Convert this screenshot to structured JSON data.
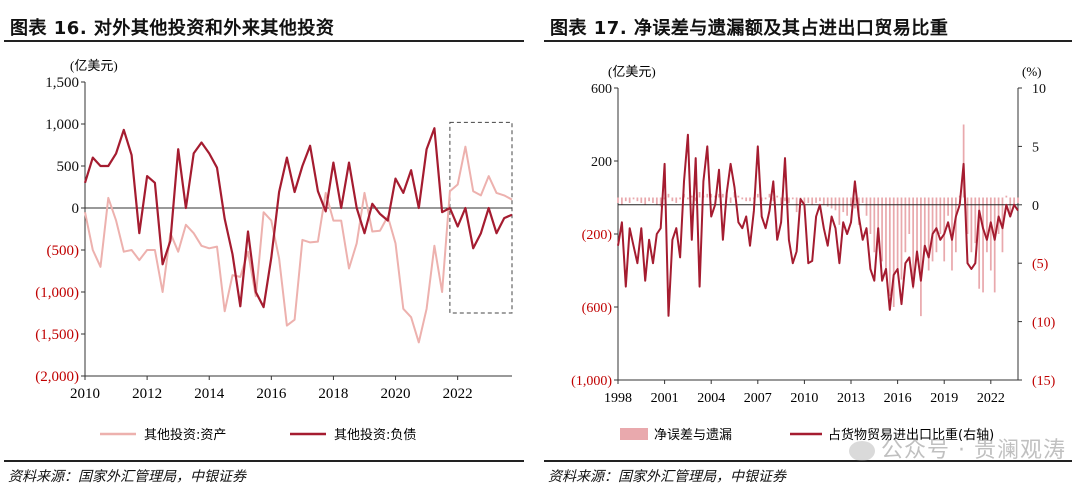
{
  "figures": {
    "left": {
      "title": "图表 16. 对外其他投资和外来其他投资",
      "source": "资料来源：国家外汇管理局，中银证券"
    },
    "right": {
      "title": "图表 17. 净误差与遗漏额及其占进出口贸易比重",
      "source": "资料来源：国家外汇管理局，中银证券"
    }
  },
  "watermark": "公众号 · 贵澜观涛",
  "colors": {
    "dark_red": "#A51C30",
    "light_pink": "#EDB1AE",
    "bar_pink": "#E9A9AD",
    "red_ticks": "#C00000"
  },
  "chart_data": [
    {
      "type": "line",
      "ylabel": "(亿美元)",
      "ylim": [
        -2000,
        1500
      ],
      "yticks": [
        1500,
        1000,
        500,
        0,
        -500,
        -1000,
        -1500,
        -2000
      ],
      "ytick_labels": [
        "1,500",
        "1,000",
        "500",
        "0",
        "(500)",
        "(1,000)",
        "(1,500)",
        "(2,000)"
      ],
      "xlim": [
        2010,
        2023.75
      ],
      "xticks": [
        2010,
        2012,
        2014,
        2016,
        2018,
        2020,
        2022
      ],
      "xtick_labels": [
        "2010",
        "2012",
        "2014",
        "2016",
        "2018",
        "2020",
        "2022"
      ],
      "highlight_box": {
        "x_from": 2021.75,
        "x_to": 2023.75,
        "y_from": -1250,
        "y_to": 1020
      },
      "x": [
        2010.0,
        2010.25,
        2010.5,
        2010.75,
        2011.0,
        2011.25,
        2011.5,
        2011.75,
        2012.0,
        2012.25,
        2012.5,
        2012.75,
        2013.0,
        2013.25,
        2013.5,
        2013.75,
        2014.0,
        2014.25,
        2014.5,
        2014.75,
        2015.0,
        2015.25,
        2015.5,
        2015.75,
        2016.0,
        2016.25,
        2016.5,
        2016.75,
        2017.0,
        2017.25,
        2017.5,
        2017.75,
        2018.0,
        2018.25,
        2018.5,
        2018.75,
        2019.0,
        2019.25,
        2019.5,
        2019.75,
        2020.0,
        2020.25,
        2020.5,
        2020.75,
        2021.0,
        2021.25,
        2021.5,
        2021.75,
        2022.0,
        2022.25,
        2022.5,
        2022.75,
        2023.0,
        2023.25,
        2023.5,
        2023.75
      ],
      "series": [
        {
          "name": "其他投资:资产",
          "color": "#EDB1AE",
          "values": [
            -50,
            -500,
            -700,
            120,
            -150,
            -520,
            -500,
            -620,
            -500,
            -500,
            -1000,
            -300,
            -520,
            -200,
            -300,
            -450,
            -480,
            -460,
            -1230,
            -800,
            -820,
            -520,
            -1050,
            -50,
            -150,
            -600,
            -1400,
            -1330,
            -380,
            -410,
            -400,
            180,
            -150,
            -150,
            -720,
            -420,
            180,
            -280,
            -270,
            -100,
            -420,
            -1200,
            -1300,
            -1600,
            -1200,
            -450,
            -1000,
            200,
            280,
            730,
            200,
            150,
            380,
            180,
            150,
            100
          ]
        },
        {
          "name": "其他投资:负债",
          "color": "#A51C30",
          "values": [
            300,
            600,
            500,
            500,
            650,
            930,
            630,
            -300,
            380,
            300,
            -670,
            -390,
            700,
            0,
            650,
            780,
            650,
            480,
            -130,
            -550,
            -1170,
            -280,
            -1000,
            -1180,
            -590,
            190,
            600,
            190,
            500,
            740,
            200,
            -40,
            540,
            0,
            540,
            0,
            -300,
            50,
            -70,
            -150,
            350,
            180,
            450,
            0,
            700,
            950,
            -50,
            0,
            -220,
            0,
            -480,
            -300,
            0,
            -300,
            -120,
            -80
          ]
        }
      ]
    },
    {
      "type": "bar+line",
      "ylabel": "(亿美元)",
      "y2label": "(%)",
      "ylim": [
        -1000,
        600
      ],
      "yticks": [
        600,
        200,
        -200,
        -600,
        -1000
      ],
      "ytick_labels": [
        "600",
        "200",
        "(200)",
        "(600)",
        "(1,000)"
      ],
      "y2lim": [
        -15,
        10
      ],
      "y2ticks": [
        10,
        5,
        0,
        -5,
        -10,
        -15
      ],
      "y2tick_labels": [
        "10",
        "5",
        "0",
        "(5)",
        "(10)",
        "(15)"
      ],
      "xlim": [
        1998,
        2023.75
      ],
      "xticks": [
        1998,
        2001,
        2004,
        2007,
        2010,
        2013,
        2016,
        2019,
        2022
      ],
      "xtick_labels": [
        "1998",
        "2001",
        "2004",
        "2007",
        "2010",
        "2013",
        "2016",
        "2019",
        "2022"
      ],
      "x": [
        1998.0,
        1998.25,
        1998.5,
        1998.75,
        1999.0,
        1999.25,
        1999.5,
        1999.75,
        2000.0,
        2000.25,
        2000.5,
        2000.75,
        2001.0,
        2001.25,
        2001.5,
        2001.75,
        2002.0,
        2002.25,
        2002.5,
        2002.75,
        2003.0,
        2003.25,
        2003.5,
        2003.75,
        2004.0,
        2004.25,
        2004.5,
        2004.75,
        2005.0,
        2005.25,
        2005.5,
        2005.75,
        2006.0,
        2006.25,
        2006.5,
        2006.75,
        2007.0,
        2007.25,
        2007.5,
        2007.75,
        2008.0,
        2008.25,
        2008.5,
        2008.75,
        2009.0,
        2009.25,
        2009.5,
        2009.75,
        2010.0,
        2010.25,
        2010.5,
        2010.75,
        2011.0,
        2011.25,
        2011.5,
        2011.75,
        2012.0,
        2012.25,
        2012.5,
        2012.75,
        2013.0,
        2013.25,
        2013.5,
        2013.75,
        2014.0,
        2014.25,
        2014.5,
        2014.75,
        2015.0,
        2015.25,
        2015.5,
        2015.75,
        2016.0,
        2016.25,
        2016.5,
        2016.75,
        2017.0,
        2017.25,
        2017.5,
        2017.75,
        2018.0,
        2018.25,
        2018.5,
        2018.75,
        2019.0,
        2019.25,
        2019.5,
        2019.75,
        2020.0,
        2020.25,
        2020.5,
        2020.75,
        2021.0,
        2021.25,
        2021.5,
        2021.75,
        2022.0,
        2022.25,
        2022.5,
        2022.75,
        2023.0,
        2023.25,
        2023.5,
        2023.75
      ],
      "series": [
        {
          "name": "净误差与遗漏",
          "type": "bar",
          "axis": "left",
          "color": "#E9A9AD",
          "values": [
            -30,
            -40,
            -20,
            -30,
            -10,
            -20,
            -30,
            -40,
            -20,
            -30,
            -40,
            -50,
            -10,
            20,
            -20,
            -30,
            -10,
            20,
            -10,
            10,
            -20,
            30,
            10,
            20,
            20,
            10,
            20,
            20,
            10,
            -30,
            30,
            10,
            -10,
            -20,
            -20,
            -10,
            20,
            -20,
            -10,
            20,
            -20,
            10,
            -40,
            -20,
            -30,
            -10,
            -80,
            -20,
            -30,
            -30,
            -40,
            -30,
            -20,
            -40,
            -50,
            -60,
            -70,
            -150,
            -80,
            -100,
            -50,
            -60,
            -150,
            -30,
            -100,
            -200,
            -300,
            -200,
            -350,
            -400,
            -540,
            -600,
            -400,
            -450,
            -300,
            -200,
            -500,
            -300,
            -650,
            -300,
            -400,
            -350,
            -300,
            -200,
            -350,
            -100,
            -400,
            -300,
            10,
            400,
            -200,
            -300,
            -250,
            -500,
            -520,
            -300,
            -400,
            -520,
            -200,
            -300,
            10,
            -100,
            -50,
            -30
          ]
        },
        {
          "name": "占货物贸易进出口比重(右轴)",
          "type": "line",
          "axis": "right",
          "color": "#A51C30",
          "values": [
            -3.5,
            -1.5,
            -7.0,
            -2.0,
            -3.5,
            -5.0,
            -2.0,
            -6.5,
            -3.0,
            -5.0,
            -2.5,
            -2.0,
            3.5,
            -9.5,
            -3.0,
            -2.0,
            -4.5,
            2.0,
            6.0,
            -3.0,
            4.0,
            -7.0,
            2.0,
            5.0,
            -1.0,
            0.0,
            3.0,
            -3.0,
            1.0,
            3.5,
            1.5,
            -1.5,
            -2.0,
            -1.0,
            -3.5,
            -0.5,
            5.0,
            -1.0,
            -2.0,
            -0.5,
            2.0,
            -3.0,
            -1.5,
            4.0,
            -3.0,
            -5.0,
            -4.0,
            0.5,
            0.0,
            -5.0,
            -4.8,
            -1.0,
            0.0,
            -2.0,
            -3.5,
            -1.0,
            -2.0,
            -5.0,
            -1.5,
            -2.5,
            -1.5,
            2.0,
            -1.0,
            -3.0,
            -2.0,
            -5.5,
            -6.5,
            -2.0,
            -6.5,
            -5.5,
            -9.0,
            -6.0,
            -5.5,
            -8.5,
            -5.0,
            -4.5,
            -7.0,
            -4.0,
            -6.5,
            -3.5,
            -4.5,
            -2.5,
            -2.0,
            -3.0,
            -2.5,
            -1.5,
            -3.0,
            -1.0,
            0.0,
            3.5,
            -5.0,
            -5.5,
            -5.0,
            -0.5,
            -2.0,
            -3.0,
            -1.5,
            -3.0,
            -1.0,
            -2.0,
            0.0,
            -1.0,
            0.0,
            -0.5
          ]
        }
      ]
    }
  ]
}
